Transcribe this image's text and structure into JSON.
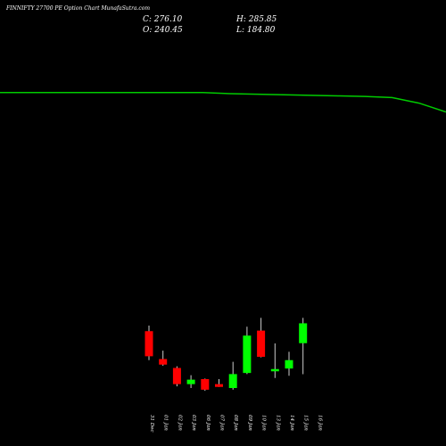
{
  "header": {
    "title": "FINNIFTY 27700 PE Option Chart MunafaSutra.com",
    "close_label": "C: 276.10",
    "open_label": "O: 240.45",
    "high_label": "H: 285.85",
    "low_label": "L: 184.80"
  },
  "colors": {
    "background": "#000000",
    "up": "#00ff00",
    "down": "#ff0000",
    "moving_average": "#00cc00",
    "wick": "#cccccc",
    "text": "#ffffff"
  },
  "chart_data": {
    "type": "candlestick",
    "title": "FINNIFTY 27700 PE Option Chart MunafaSutra.com",
    "categories": [
      "31 Dec",
      "01 Jan",
      "02 Jan",
      "03 Jan",
      "06 Jan",
      "07 Jan",
      "08 Jan",
      "09 Jan",
      "10 Jan",
      "13 Jan",
      "14 Jan",
      "15 Jan",
      "16 Jan"
    ],
    "candles": [
      {
        "date": "31 Dec",
        "open": 262,
        "high": 272,
        "low": 210,
        "close": 217,
        "direction": "down"
      },
      {
        "date": "01 Jan",
        "open": 212,
        "high": 227,
        "low": 200,
        "close": 202,
        "direction": "down"
      },
      {
        "date": "02 Jan",
        "open": 196,
        "high": 199,
        "low": 163,
        "close": 167,
        "direction": "down"
      },
      {
        "date": "03 Jan",
        "open": 167,
        "high": 183,
        "low": 160,
        "close": 175,
        "direction": "up"
      },
      {
        "date": "06 Jan",
        "open": 176,
        "high": 177,
        "low": 155,
        "close": 157,
        "direction": "down"
      },
      {
        "date": "07 Jan",
        "open": 167,
        "high": 176,
        "low": 162,
        "close": 162,
        "direction": "down"
      },
      {
        "date": "08 Jan",
        "open": 160,
        "high": 207,
        "low": 157,
        "close": 185,
        "direction": "up"
      },
      {
        "date": "09 Jan",
        "open": 187,
        "high": 270,
        "low": 185,
        "close": 254,
        "direction": "up"
      },
      {
        "date": "10 Jan",
        "open": 263,
        "high": 285.85,
        "low": 215,
        "close": 216,
        "direction": "down"
      },
      {
        "date": "13 Jan",
        "open": 190,
        "high": 240,
        "low": 178,
        "close": 194,
        "direction": "up"
      },
      {
        "date": "14 Jan",
        "open": 195,
        "high": 225,
        "low": 182,
        "close": 210,
        "direction": "up"
      },
      {
        "date": "15 Jan",
        "open": 240.45,
        "high": 285.85,
        "low": 184.8,
        "close": 276.1,
        "direction": "up"
      }
    ],
    "moving_average": {
      "x": [
        "31 Dec",
        "01 Jan",
        "02 Jan",
        "03 Jan",
        "06 Jan",
        "07 Jan",
        "08 Jan",
        "09 Jan",
        "10 Jan",
        "13 Jan",
        "14 Jan",
        "15 Jan",
        "16 Jan"
      ],
      "values": [
        690,
        690,
        690,
        690,
        688,
        687,
        686,
        685,
        684,
        683,
        681,
        671,
        655
      ]
    },
    "ylim": [
      120,
      760
    ],
    "grid": false
  }
}
